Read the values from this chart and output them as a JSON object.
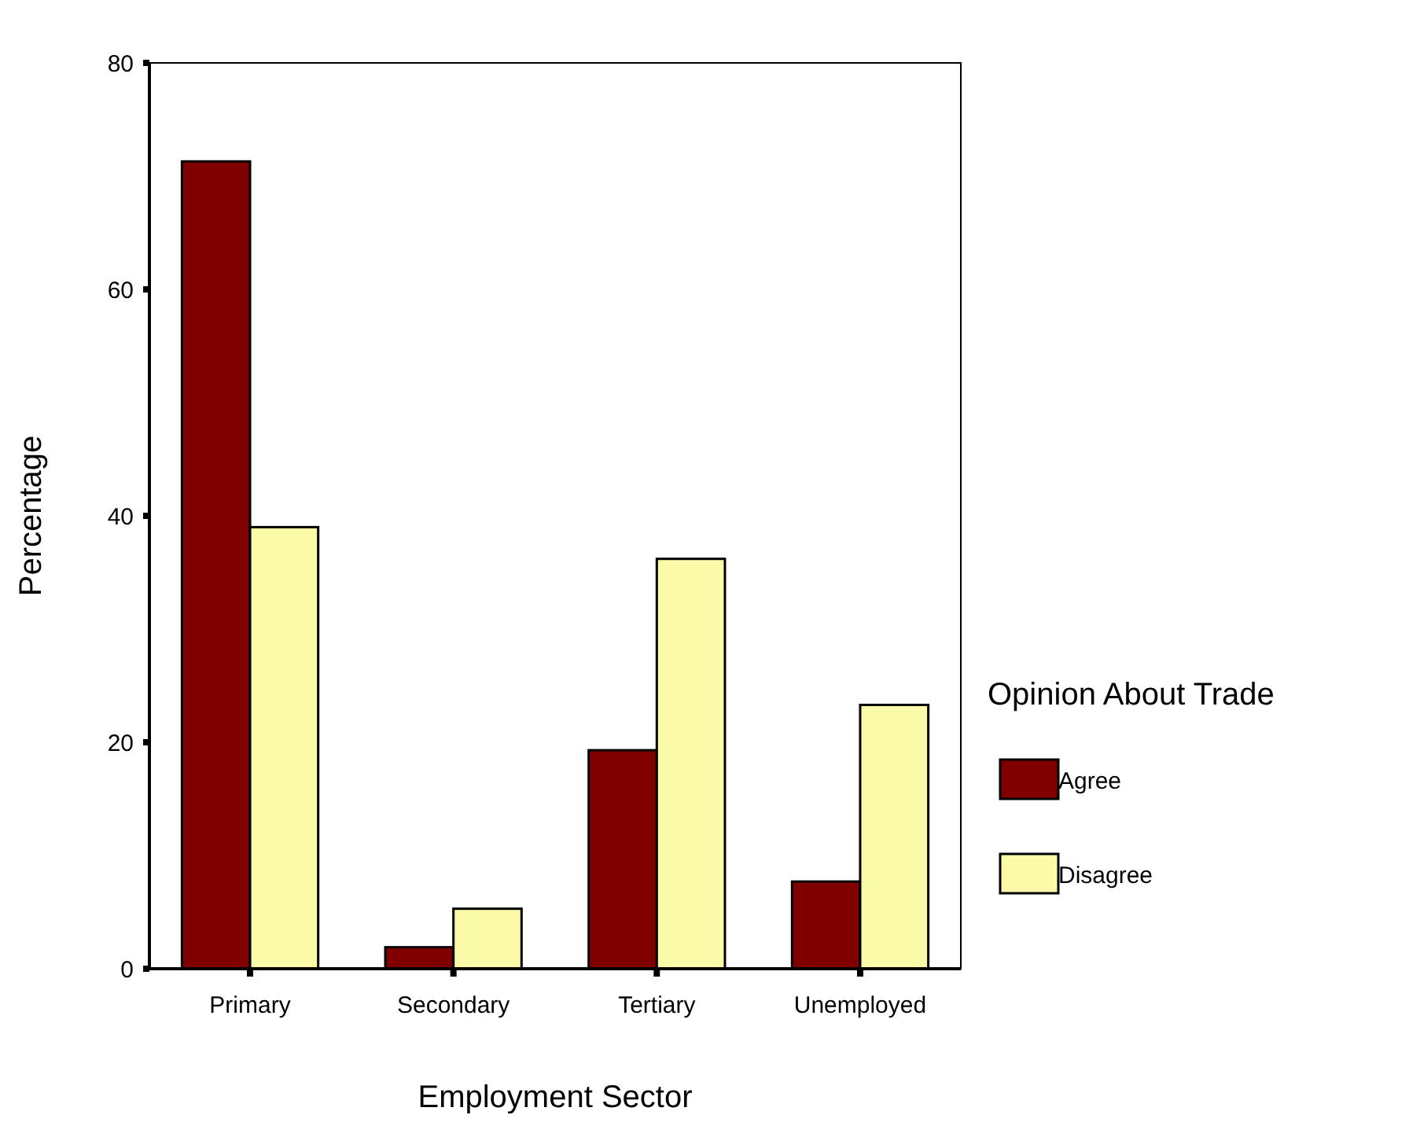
{
  "chart_data": {
    "type": "bar",
    "xlabel": "Employment Sector",
    "ylabel": "Percentage",
    "legend_title": "Opinion About Trade",
    "legend": "right",
    "categories": [
      "Primary",
      "Secondary",
      "Tertiary",
      "Unemployed"
    ],
    "series": [
      {
        "name": "Agree",
        "color": "#800000",
        "values": [
          71.3,
          1.9,
          19.3,
          7.7
        ]
      },
      {
        "name": "Disagree",
        "color": "#fafaa8",
        "values": [
          39.0,
          5.3,
          36.2,
          23.3
        ]
      }
    ],
    "ylim": [
      0,
      80
    ],
    "yticks": [
      0,
      20,
      40,
      60,
      80
    ],
    "grid": false
  }
}
